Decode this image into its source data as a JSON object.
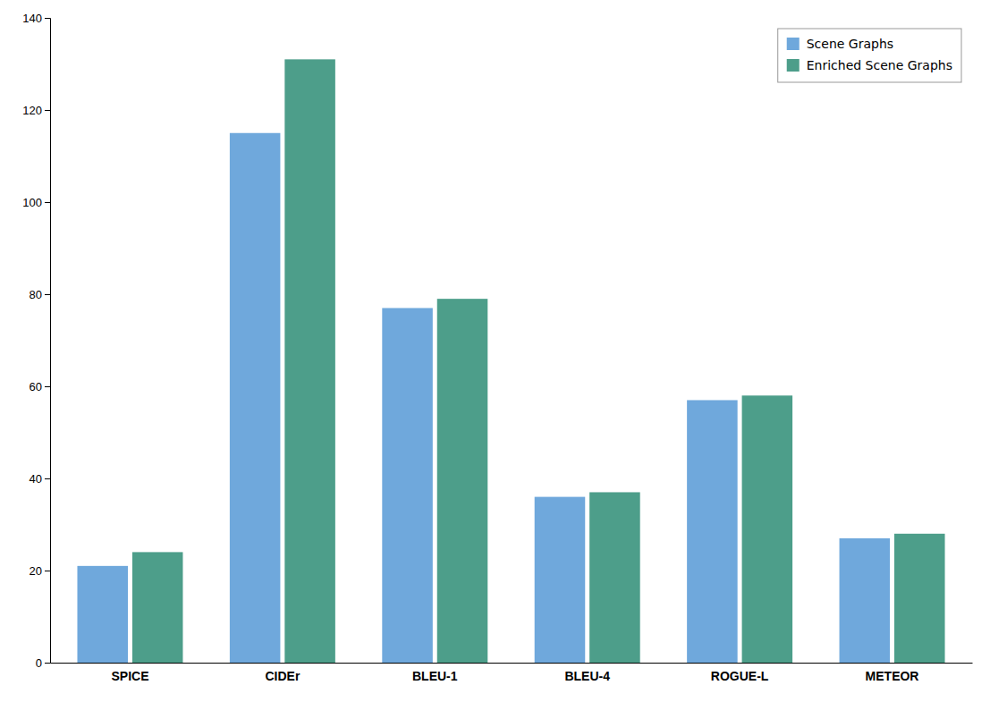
{
  "chart_data": {
    "type": "bar",
    "categories": [
      "SPICE",
      "CIDEr",
      "BLEU-1",
      "BLEU-4",
      "ROGUE-L",
      "METEOR"
    ],
    "series": [
      {
        "name": "Scene Graphs",
        "color": "#6fa8dc",
        "values": [
          21,
          115,
          77,
          36,
          57,
          27
        ]
      },
      {
        "name": "Enriched Scene Graphs",
        "color": "#4d9e8a",
        "values": [
          24,
          131,
          79,
          37,
          58,
          28
        ]
      }
    ],
    "ylim": [
      0,
      140
    ],
    "yticks": [
      0,
      20,
      40,
      60,
      80,
      100,
      120,
      140
    ],
    "grid": false,
    "legend": "upper right"
  }
}
